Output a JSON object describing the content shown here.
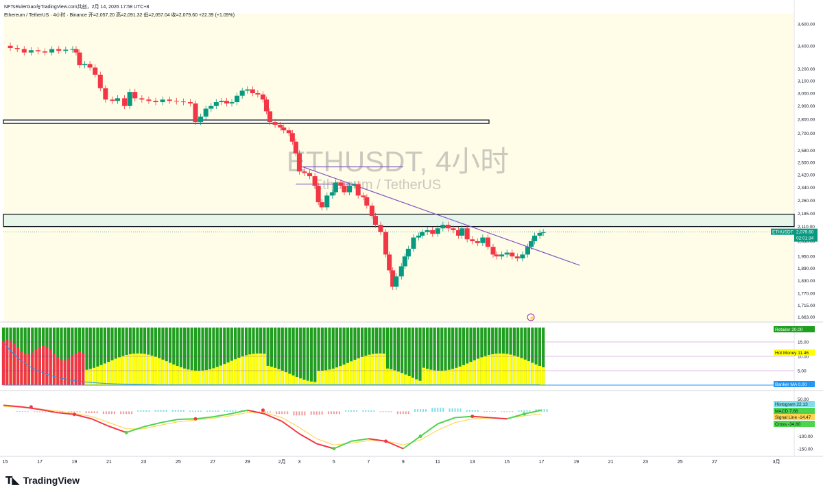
{
  "header": {
    "author": "NFTsRulerGao",
    "line": "NFTsRulerGao与TradingView.com共创，2月 14, 2026 17:58 UTC+8",
    "symbol_line": "Ethereum / TetherUS · 4小时 · Binance",
    "ohlc": "开=2,057.20 高=2,091.32 低=2,057.04 收=2,079.60",
    "change": "+22.39 (+1.09%)"
  },
  "brand": {
    "name": "TradingView",
    "logo": "tradingview-logo-icon"
  },
  "watermark": {
    "title": "ETHUSDT, 4小时",
    "subtitle": "Ethereum / TetherUS"
  },
  "price_labels": {
    "symbol": "ETHUSDT",
    "price": "2,079.60",
    "countdown": "02:01:34"
  },
  "indicator_labels": {
    "retailer": "Retailer",
    "retailer_val": "20.00",
    "hot_money": "Hot Money",
    "hot_money_val": "11.46",
    "banker_ma": "Banker MA",
    "banker_ma_val": "0.00",
    "histogram": "Histogram",
    "histogram_val": "22.13",
    "macd": "MACD",
    "macd_val": "7.66",
    "signal": "Signal Line",
    "signal_val": "-14.47",
    "cross": "Cross",
    "cross_val": "-34.80"
  },
  "colors": {
    "up": "#089981",
    "down": "#f23645",
    "trend": "#7e57c2",
    "zone_fill": "#e8f5e9",
    "retailer": "#1f9e1f",
    "hot_money": "#ffff00",
    "banker": "#f23645",
    "macd_line_up": "#4cd44c",
    "macd_line_down": "#f23645",
    "signal_line": "#ffd54f"
  },
  "chart_data": {
    "type": "candlestick",
    "title": "ETHUSDT, 4小时",
    "subtitle": "Ethereum / TetherUS",
    "x_ticks": [
      "15",
      "17",
      "19",
      "21",
      "23",
      "25",
      "27",
      "29",
      "2月",
      "3",
      "5",
      "7",
      "9",
      "11",
      "13",
      "15",
      "17",
      "19",
      "21",
      "23",
      "25",
      "27",
      "3月"
    ],
    "y_ticks": [
      "3,600.00",
      "3,400.00",
      "3,200.00",
      "3,100.00",
      "3,000.00",
      "2,900.00",
      "2,800.00",
      "2,700.00",
      "2,580.00",
      "2,500.00",
      "2,420.00",
      "2,340.00",
      "2,260.00",
      "2,185.00",
      "2,110.00",
      "2,030.00",
      "1,950.00",
      "1,890.00",
      "1,830.00",
      "1,770.00",
      "1,715.00",
      "1,663.00"
    ],
    "y_scale": "log",
    "ylim": [
      1640,
      3700
    ],
    "current_price": 2079.6,
    "price_path_days": [
      [
        14.9,
        3400
      ],
      [
        15.3,
        3380
      ],
      [
        15.7,
        3370
      ],
      [
        16.1,
        3340
      ],
      [
        16.5,
        3360
      ],
      [
        16.9,
        3350
      ],
      [
        17.3,
        3340
      ],
      [
        17.7,
        3370
      ],
      [
        18.1,
        3355
      ],
      [
        18.5,
        3365
      ],
      [
        18.9,
        3370
      ],
      [
        19.1,
        3340
      ],
      [
        19.3,
        3230
      ],
      [
        19.6,
        3240
      ],
      [
        19.9,
        3210
      ],
      [
        20.2,
        3150
      ],
      [
        20.5,
        3040
      ],
      [
        20.8,
        2950
      ],
      [
        21.2,
        2940
      ],
      [
        21.5,
        2960
      ],
      [
        21.9,
        2900
      ],
      [
        22.2,
        3010
      ],
      [
        22.5,
        2960
      ],
      [
        22.9,
        2950
      ],
      [
        23.3,
        2940
      ],
      [
        23.7,
        2930
      ],
      [
        24.1,
        2950
      ],
      [
        24.5,
        2940
      ],
      [
        24.9,
        2935
      ],
      [
        25.3,
        2930
      ],
      [
        25.7,
        2920
      ],
      [
        26.0,
        2780
      ],
      [
        26.3,
        2820
      ],
      [
        26.6,
        2880
      ],
      [
        26.9,
        2900
      ],
      [
        27.2,
        2930
      ],
      [
        27.5,
        2940
      ],
      [
        27.8,
        2920
      ],
      [
        28.1,
        2930
      ],
      [
        28.4,
        2980
      ],
      [
        28.7,
        3020
      ],
      [
        29.0,
        3030
      ],
      [
        29.3,
        3000
      ],
      [
        29.6,
        2990
      ],
      [
        29.9,
        2950
      ],
      [
        30.1,
        2860
      ],
      [
        30.3,
        2780
      ],
      [
        30.6,
        2760
      ],
      [
        30.9,
        2740
      ],
      [
        31.1,
        2720
      ],
      [
        31.4,
        2700
      ],
      [
        31.6,
        2640
      ],
      [
        31.8,
        2560
      ],
      [
        32.0,
        2440
      ],
      [
        32.3,
        2430
      ],
      [
        32.6,
        2410
      ],
      [
        32.9,
        2350
      ],
      [
        33.1,
        2250
      ],
      [
        33.3,
        2220
      ],
      [
        33.6,
        2290
      ],
      [
        33.9,
        2310
      ],
      [
        34.1,
        2370
      ],
      [
        34.4,
        2350
      ],
      [
        34.6,
        2310
      ],
      [
        34.9,
        2350
      ],
      [
        35.2,
        2360
      ],
      [
        35.4,
        2290
      ],
      [
        35.7,
        2280
      ],
      [
        35.9,
        2230
      ],
      [
        36.2,
        2170
      ],
      [
        36.4,
        2120
      ],
      [
        36.7,
        2080
      ],
      [
        37.0,
        1960
      ],
      [
        37.2,
        1880
      ],
      [
        37.4,
        1800
      ],
      [
        37.6,
        1850
      ],
      [
        37.9,
        1900
      ],
      [
        38.1,
        1950
      ],
      [
        38.3,
        1990
      ],
      [
        38.6,
        2050
      ],
      [
        38.9,
        2060
      ],
      [
        39.1,
        2080
      ],
      [
        39.4,
        2090
      ],
      [
        39.7,
        2070
      ],
      [
        40.0,
        2100
      ],
      [
        40.3,
        2120
      ],
      [
        40.6,
        2100
      ],
      [
        40.9,
        2090
      ],
      [
        41.2,
        2060
      ],
      [
        41.4,
        2100
      ],
      [
        41.7,
        2040
      ],
      [
        42.0,
        2030
      ],
      [
        42.3,
        2020
      ],
      [
        42.6,
        2050
      ],
      [
        42.9,
        2000
      ],
      [
        43.2,
        1960
      ],
      [
        43.4,
        1950
      ],
      [
        43.7,
        1960
      ],
      [
        44.0,
        1970
      ],
      [
        44.3,
        1950
      ],
      [
        44.6,
        1940
      ],
      [
        44.9,
        1960
      ],
      [
        45.2,
        2000
      ],
      [
        45.4,
        2030
      ],
      [
        45.6,
        2060
      ],
      [
        45.9,
        2075
      ],
      [
        46.1,
        2079.6
      ]
    ],
    "horizontal_zones": [
      {
        "name": "resistance-band-2780",
        "from": 2770,
        "to": 2795
      },
      {
        "name": "support-zone-2110",
        "from": 2110,
        "to": 2180
      }
    ],
    "trendlines": [
      {
        "name": "descending-trendline",
        "from": [
          32.2,
          2470
        ],
        "to": [
          48.2,
          1905
        ]
      },
      {
        "name": "level-2470",
        "from": [
          32.0,
          2470
        ],
        "to": [
          38.0,
          2470
        ]
      },
      {
        "name": "level-2360",
        "from": [
          31.8,
          2360
        ],
        "to": [
          35.2,
          2360
        ]
      }
    ],
    "indicators": [
      {
        "name": "Retailer",
        "value": 20.0
      },
      {
        "name": "Hot Money",
        "value": 11.46
      },
      {
        "name": "Banker MA",
        "value": 0.0
      },
      {
        "name": "Histogram",
        "value": 22.13
      },
      {
        "name": "MACD",
        "value": 7.66
      },
      {
        "name": "Signal Line",
        "value": -14.47
      },
      {
        "name": "Cross",
        "value": -34.8
      }
    ],
    "indicator1_ticks": [
      "15.00",
      "10.00",
      "5.00"
    ],
    "indicator2_ticks": [
      "50.00",
      "-50.00",
      "-100.00",
      "-150.00"
    ],
    "indicator2_ylim": [
      -170,
      70
    ],
    "macd_path": [
      [
        14.9,
        25
      ],
      [
        16,
        18
      ],
      [
        17,
        8
      ],
      [
        18,
        -5
      ],
      [
        19,
        -12
      ],
      [
        20,
        -30
      ],
      [
        21,
        -60
      ],
      [
        22,
        -85
      ],
      [
        23,
        -62
      ],
      [
        24,
        -45
      ],
      [
        25,
        -32
      ],
      [
        26,
        -30
      ],
      [
        27,
        -22
      ],
      [
        28,
        -10
      ],
      [
        29,
        5
      ],
      [
        30,
        -10
      ],
      [
        31,
        -40
      ],
      [
        32,
        -90
      ],
      [
        33,
        -130
      ],
      [
        34,
        -150
      ],
      [
        35,
        -120
      ],
      [
        36,
        -110
      ],
      [
        37,
        -120
      ],
      [
        38,
        -150
      ],
      [
        39,
        -100
      ],
      [
        40,
        -50
      ],
      [
        41,
        -25
      ],
      [
        42,
        -20
      ],
      [
        43,
        -25
      ],
      [
        44,
        -30
      ],
      [
        45,
        -10
      ],
      [
        46,
        5
      ]
    ],
    "signal_path": [
      [
        14.9,
        20
      ],
      [
        16,
        16
      ],
      [
        17,
        10
      ],
      [
        18,
        2
      ],
      [
        19,
        -8
      ],
      [
        20,
        -20
      ],
      [
        21,
        -45
      ],
      [
        22,
        -70
      ],
      [
        23,
        -70
      ],
      [
        24,
        -55
      ],
      [
        25,
        -42
      ],
      [
        26,
        -35
      ],
      [
        27,
        -28
      ],
      [
        28,
        -18
      ],
      [
        29,
        -5
      ],
      [
        30,
        -5
      ],
      [
        31,
        -25
      ],
      [
        32,
        -65
      ],
      [
        33,
        -110
      ],
      [
        34,
        -135
      ],
      [
        35,
        -128
      ],
      [
        36,
        -118
      ],
      [
        37,
        -118
      ],
      [
        38,
        -135
      ],
      [
        39,
        -115
      ],
      [
        40,
        -75
      ],
      [
        41,
        -45
      ],
      [
        42,
        -30
      ],
      [
        43,
        -27
      ],
      [
        44,
        -28
      ],
      [
        45,
        -18
      ],
      [
        46,
        -10
      ]
    ]
  }
}
